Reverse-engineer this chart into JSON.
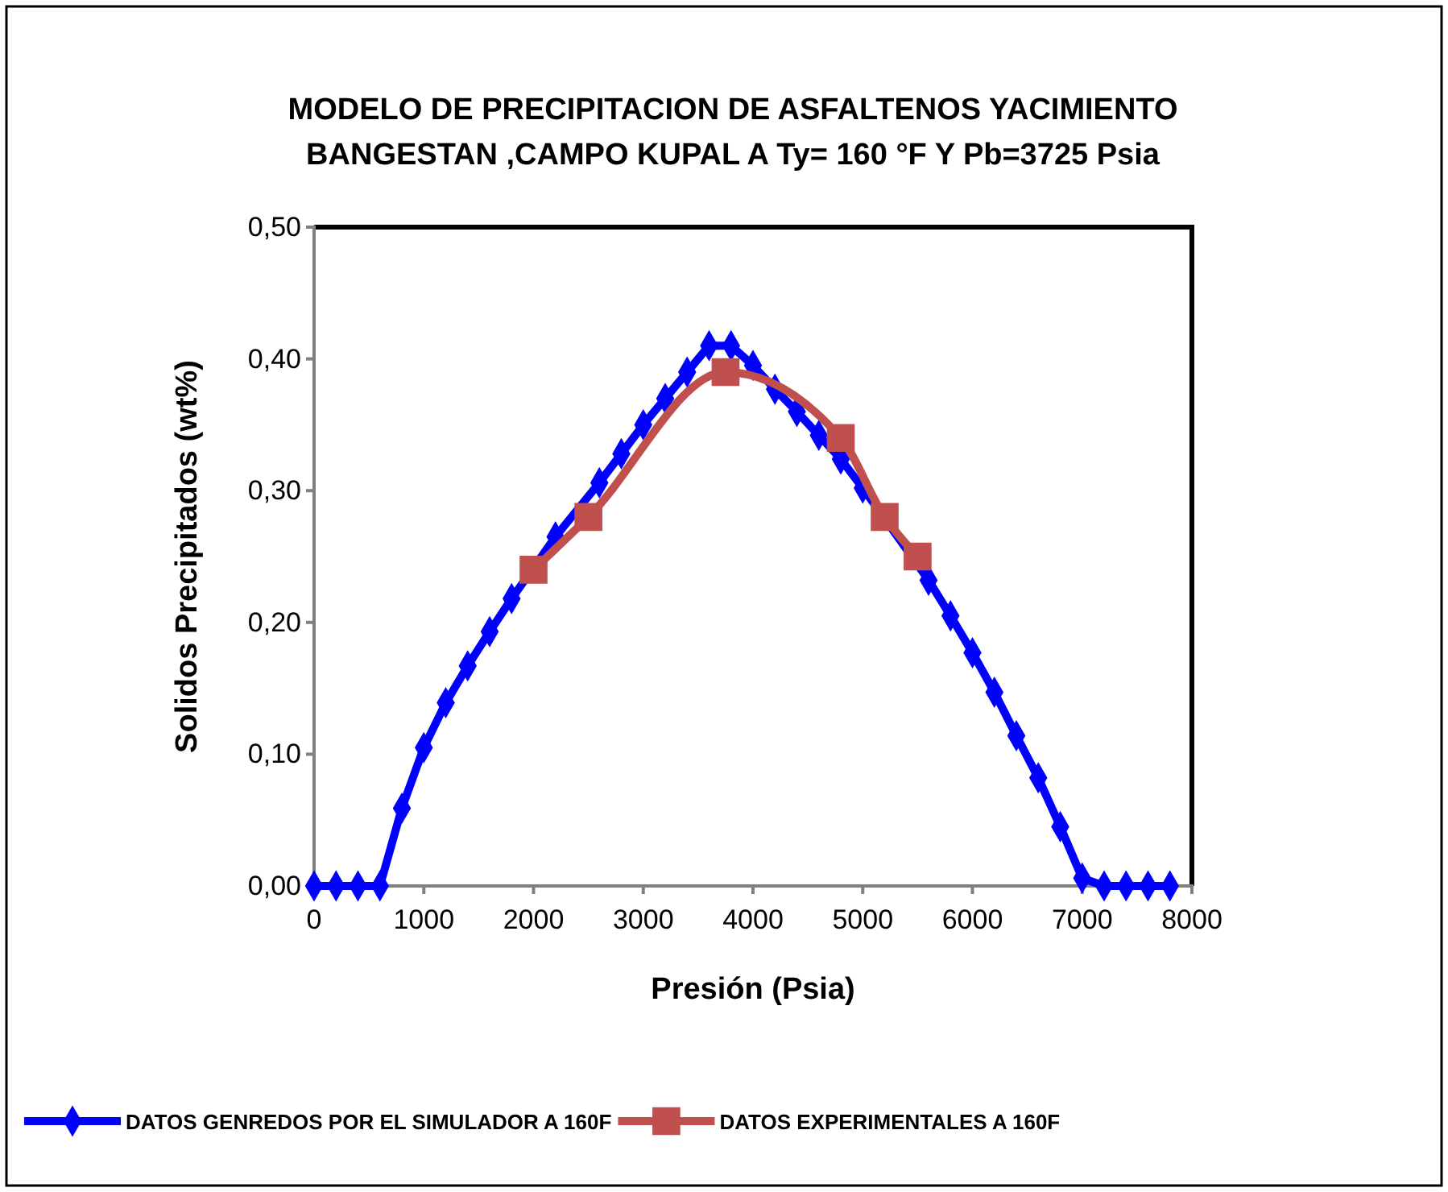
{
  "chart_data": {
    "type": "line",
    "title": "MODELO DE PRECIPITACION  DE ASFALTENOS YACIMIENTO BANGESTAN ,CAMPO  KUPAL  A Ty= 160 °F  Y Pb=3725 Psia",
    "xlabel": "Presión  (Psia)",
    "ylabel": "Solidos  Precipitados  (wt%)",
    "xlim": [
      0,
      8000
    ],
    "xticks": [
      0,
      1000,
      2000,
      3000,
      4000,
      5000,
      6000,
      7000,
      8000
    ],
    "ylim": [
      0,
      0.5
    ],
    "yticks": [
      {
        "value": 0,
        "label": "0,00"
      },
      {
        "value": 0.1,
        "label": "0,10"
      },
      {
        "value": 0.2,
        "label": "0,20"
      },
      {
        "value": 0.3,
        "label": "0,30"
      },
      {
        "value": 0.4,
        "label": "0,40"
      },
      {
        "value": 0.5,
        "label": "0,50"
      }
    ],
    "grid": false,
    "legend": "bottom",
    "series": [
      {
        "name": "DATOS GENREDOS POR EL SIMULADOR A 160F",
        "color": "#0000ff",
        "marker": "diamond",
        "x": [
          0,
          200,
          400,
          600,
          800,
          1000,
          1200,
          1400,
          1600,
          1800,
          2000,
          2200,
          2400,
          2600,
          2800,
          3000,
          3200,
          3400,
          3600,
          3800,
          4000,
          4200,
          4400,
          4600,
          4800,
          5000,
          5200,
          5400,
          5600,
          5800,
          6000,
          6200,
          6400,
          6600,
          6800,
          7000,
          7200,
          7400,
          7600,
          7800
        ],
        "values": [
          0,
          0,
          0,
          0,
          0.059,
          0.105,
          0.139,
          0.167,
          0.193,
          0.218,
          null,
          0.265,
          null,
          0.306,
          0.328,
          0.35,
          0.37,
          0.39,
          0.41,
          0.41,
          0.395,
          0.377,
          0.36,
          0.342,
          0.324,
          0.302,
          null,
          null,
          0.232,
          0.205,
          0.177,
          0.147,
          0.114,
          0.082,
          0.045,
          0.006,
          0,
          0,
          0,
          0
        ]
      },
      {
        "name": "DATOS EXPERIMENTALES A 160F",
        "color": "#c0504d",
        "marker": "square",
        "x": [
          2000,
          2500,
          3750,
          4800,
          5200,
          5500
        ],
        "values": [
          0.24,
          0.28,
          0.39,
          0.34,
          0.28,
          0.25
        ]
      }
    ]
  }
}
